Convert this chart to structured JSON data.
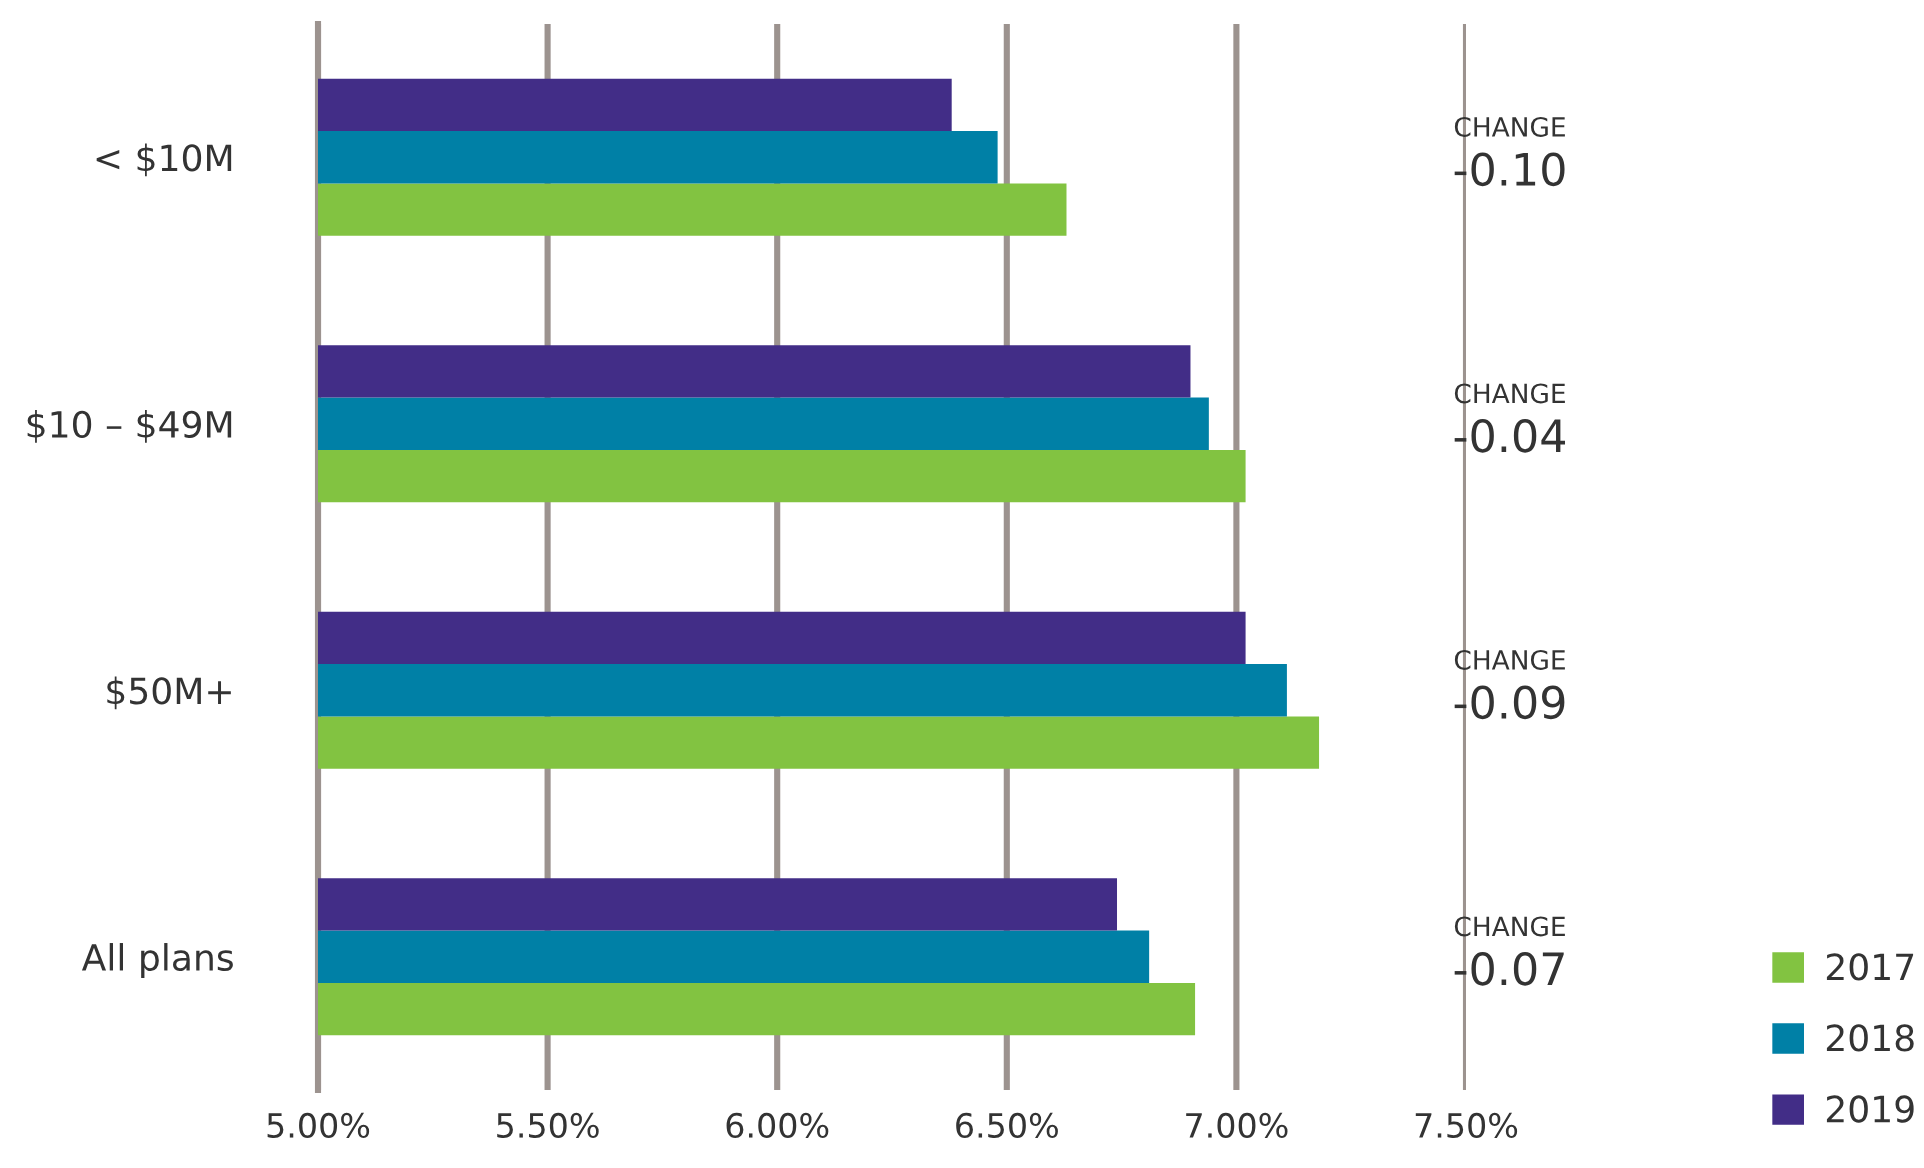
{
  "chart_data": {
    "type": "bar",
    "orientation": "horizontal",
    "categories": [
      "< $10M",
      "$10 – $49M",
      "$50M+",
      "All plans"
    ],
    "series": [
      {
        "name": "2017",
        "color": "#82c341",
        "values": [
          6.63,
          7.02,
          7.18,
          6.91
        ]
      },
      {
        "name": "2018",
        "color": "#0080a6",
        "values": [
          6.48,
          6.94,
          7.11,
          6.81
        ]
      },
      {
        "name": "2019",
        "color": "#422d87",
        "values": [
          6.38,
          6.9,
          7.02,
          6.74
        ]
      }
    ],
    "xlim": [
      5.0,
      7.5
    ],
    "xticks": [
      {
        "value": 5.0,
        "label": "5.00%"
      },
      {
        "value": 5.5,
        "label": "5.50%"
      },
      {
        "value": 6.0,
        "label": "6.00%"
      },
      {
        "value": 6.5,
        "label": "6.50%"
      },
      {
        "value": 7.0,
        "label": "7.00%"
      },
      {
        "value": 7.5,
        "label": "7.50%"
      }
    ],
    "grid": "x",
    "legend": "bottom right",
    "annotations": [
      "CHANGE\n-0.10",
      "CHANGE\n-0.04",
      "CHANGE\n-0.09",
      "CHANGE\n-0.07"
    ]
  }
}
